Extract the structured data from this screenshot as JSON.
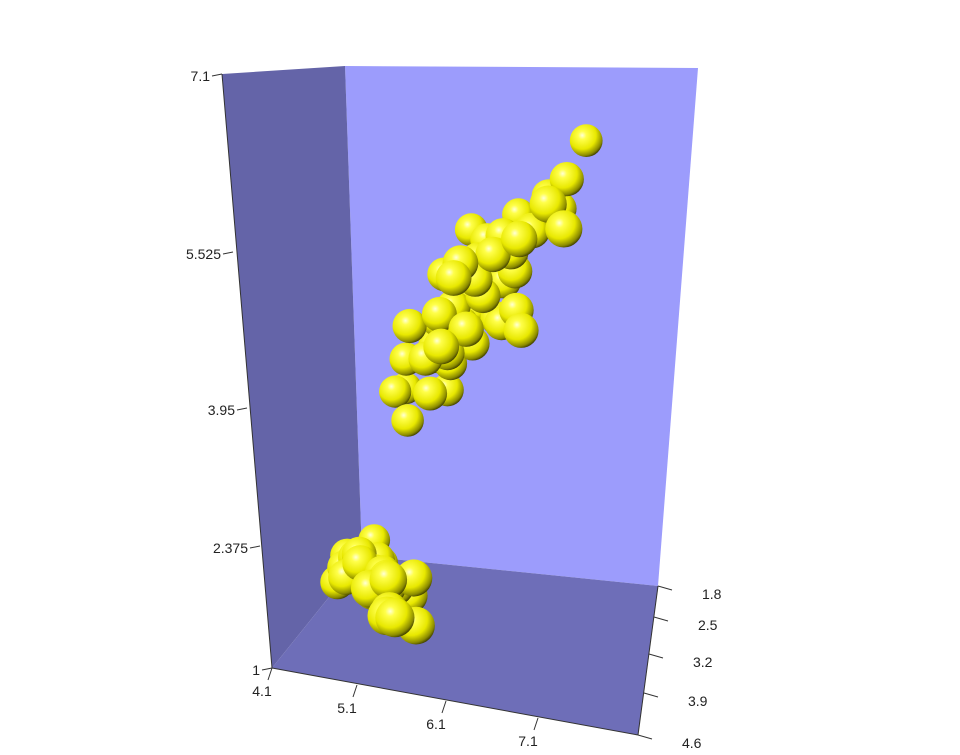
{
  "chart_data": {
    "type": "scatter",
    "subtype": "3d-spheres",
    "title": "",
    "colors": {
      "sphere": "#f2f200",
      "back_wall": "#9c9cfc",
      "left_wall": "#6464a8",
      "floor": "#6e6eb8"
    },
    "axes": {
      "x": {
        "range": [
          4.1,
          8.1
        ],
        "ticks": [
          "4.1",
          "5.1",
          "6.1",
          "7.1"
        ]
      },
      "y": {
        "range": [
          1.8,
          4.6
        ],
        "ticks": [
          "1.8",
          "2.5",
          "3.2",
          "3.9",
          "4.6"
        ]
      },
      "z": {
        "range": [
          0.8,
          7.1
        ],
        "ticks": [
          "1",
          "2.375",
          "3.95",
          "5.525",
          "7.1"
        ]
      }
    },
    "points": [
      [
        6.0,
        2.7,
        5.0
      ],
      [
        6.1,
        2.8,
        4.9
      ],
      [
        6.3,
        2.9,
        5.2
      ],
      [
        6.2,
        2.8,
        4.7
      ],
      [
        6.4,
        3.0,
        5.1
      ],
      [
        6.1,
        2.8,
        4.9
      ],
      [
        6.5,
        3.0,
        5.3
      ],
      [
        6.3,
        2.8,
        5.1
      ],
      [
        6.0,
        2.6,
        4.8
      ],
      [
        6.6,
        3.0,
        5.4
      ],
      [
        6.7,
        3.0,
        5.2
      ],
      [
        6.4,
        2.8,
        5.6
      ],
      [
        5.8,
        2.7,
        4.4
      ],
      [
        5.9,
        3.0,
        4.2
      ],
      [
        6.2,
        2.9,
        4.3
      ],
      [
        6.9,
        3.1,
        4.9
      ],
      [
        6.7,
        3.1,
        5.6
      ],
      [
        7.2,
        3.2,
        6.0
      ],
      [
        7.7,
        3.8,
        6.7
      ],
      [
        7.9,
        3.8,
        6.4
      ],
      [
        7.6,
        3.0,
        6.6
      ],
      [
        7.7,
        2.6,
        6.9
      ],
      [
        7.3,
        2.9,
        6.3
      ],
      [
        7.2,
        3.6,
        6.1
      ],
      [
        6.8,
        3.2,
        5.9
      ],
      [
        6.9,
        3.1,
        5.4
      ],
      [
        6.5,
        3.2,
        5.1
      ],
      [
        6.3,
        3.3,
        4.7
      ],
      [
        6.1,
        3.0,
        4.6
      ],
      [
        5.6,
        3.0,
        4.1
      ],
      [
        5.7,
        2.8,
        4.5
      ],
      [
        5.5,
        2.5,
        4.0
      ],
      [
        5.0,
        2.3,
        3.3
      ],
      [
        4.9,
        2.4,
        3.3
      ],
      [
        5.1,
        2.5,
        3.0
      ],
      [
        5.6,
        2.9,
        3.6
      ],
      [
        5.7,
        2.6,
        3.5
      ],
      [
        5.4,
        3.0,
        4.5
      ],
      [
        6.0,
        3.4,
        4.5
      ],
      [
        6.3,
        3.4,
        5.6
      ],
      [
        6.4,
        3.1,
        5.5
      ],
      [
        6.0,
        3.0,
        4.8
      ],
      [
        6.9,
        3.2,
        5.7
      ],
      [
        6.8,
        3.0,
        5.5
      ],
      [
        6.2,
        3.4,
        5.4
      ],
      [
        5.9,
        3.2,
        4.8
      ],
      [
        6.7,
        3.3,
        5.7
      ],
      [
        6.5,
        2.8,
        4.6
      ],
      [
        5.8,
        2.8,
        5.1
      ],
      [
        6.1,
        2.6,
        5.6
      ],
      [
        5.8,
        2.7,
        3.9
      ],
      [
        5.5,
        2.4,
        3.8
      ],
      [
        5.2,
        2.7,
        3.9
      ],
      [
        6.6,
        2.9,
        4.6
      ],
      [
        6.3,
        2.5,
        4.9
      ],
      [
        6.4,
        3.2,
        5.3
      ],
      [
        7.0,
        3.2,
        4.7
      ],
      [
        6.7,
        2.5,
        5.8
      ],
      [
        7.1,
        3.0,
        5.9
      ],
      [
        7.4,
        2.8,
        6.1
      ],
      [
        5.1,
        3.5,
        1.4
      ],
      [
        4.9,
        3.0,
        1.4
      ],
      [
        4.7,
        3.2,
        1.3
      ],
      [
        4.6,
        3.1,
        1.5
      ],
      [
        5.0,
        3.6,
        1.4
      ],
      [
        5.4,
        3.9,
        1.7
      ],
      [
        4.6,
        3.4,
        1.4
      ],
      [
        5.0,
        3.4,
        1.5
      ],
      [
        4.4,
        2.9,
        1.4
      ],
      [
        4.9,
        3.1,
        1.5
      ],
      [
        5.4,
        3.7,
        1.5
      ],
      [
        4.8,
        3.4,
        1.6
      ],
      [
        4.8,
        3.0,
        1.4
      ],
      [
        4.3,
        3.0,
        1.1
      ],
      [
        5.8,
        4.0,
        1.2
      ],
      [
        5.7,
        4.4,
        1.5
      ],
      [
        5.4,
        3.9,
        1.3
      ],
      [
        5.1,
        3.5,
        1.4
      ],
      [
        5.7,
        3.8,
        1.7
      ],
      [
        5.1,
        3.8,
        1.5
      ],
      [
        5.2,
        3.5,
        1.5
      ],
      [
        5.2,
        3.4,
        1.4
      ],
      [
        4.7,
        3.2,
        1.6
      ],
      [
        5.5,
        4.2,
        1.4
      ],
      [
        4.9,
        3.1,
        1.5
      ],
      [
        5.0,
        3.2,
        1.2
      ],
      [
        5.5,
        3.5,
        1.3
      ],
      [
        4.4,
        3.0,
        1.3
      ],
      [
        5.1,
        3.4,
        1.5
      ],
      [
        5.0,
        3.5,
        1.3
      ],
      [
        4.5,
        2.3,
        1.3
      ],
      [
        5.3,
        3.7,
        1.5
      ],
      [
        5.0,
        3.3,
        1.4
      ]
    ]
  }
}
